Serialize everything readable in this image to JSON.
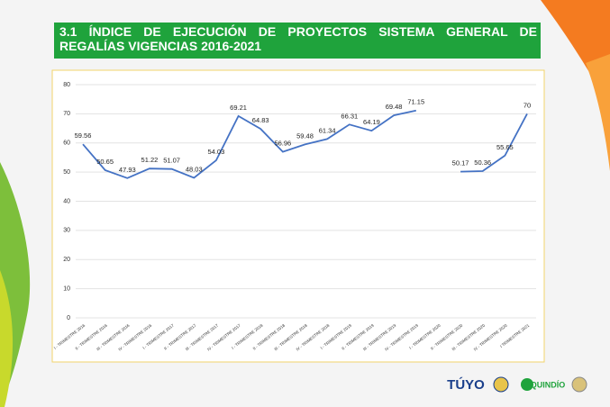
{
  "chart_data": {
    "type": "line",
    "title": "3.1 ÍNDICE DE EJECUCIÓN DE PROYECTOS SISTEMA GENERAL DE REGALÍAS VIGENCIAS 2016-2021",
    "categories": [
      "I - TRIMESTRE 2016",
      "II - TRIMESTRE 2016",
      "III - TRIMESTRE 2016",
      "IV - TRIMESTRE 2016",
      "I - TRIMESTRE 2017",
      "II - TRIMESTRE 2017",
      "III - TRIMESTRE 2017",
      "IV - TRIMESTRE 2017",
      "I - TRIMESTRE 2018",
      "II - TRIMESTRE 2018",
      "III - TRIMESTRE 2018",
      "IV - TRIMESTRE 2018",
      "I - TRIMESTRE 2019",
      "II - TRIMESTRE 2019",
      "III - TRIMESTRE 2019",
      "IV - TRIMESTRE 2019",
      "I - TRIMESTRE 2020",
      "II - TRIMESTRE 2020",
      "III - TRIMESTRE 2020",
      "IV - TRIMESTRE 2020",
      "I TRIMESTRE 2021"
    ],
    "values": [
      59.56,
      50.65,
      47.93,
      51.22,
      51.07,
      48.03,
      54.03,
      69.21,
      64.83,
      56.96,
      59.48,
      61.34,
      66.31,
      64.19,
      69.48,
      71.15,
      null,
      50.17,
      50.36,
      55.65,
      70
    ],
    "color": "#4472c4",
    "ylim": [
      0,
      80
    ],
    "yticks": [
      0,
      10,
      20,
      30,
      40,
      50,
      60,
      70,
      80
    ],
    "grid": true
  },
  "logos": [
    "TÚYO",
    "QUINDÍO"
  ]
}
